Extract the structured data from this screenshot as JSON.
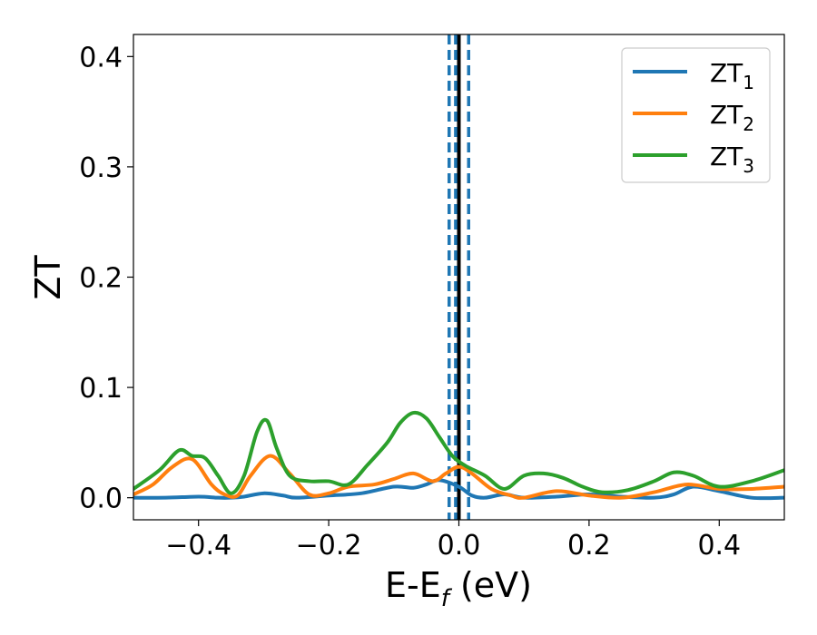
{
  "chart_data": {
    "type": "line",
    "title": "",
    "xlabel_main": "E-E",
    "xlabel_sub": "f",
    "xlabel_unit": " (eV)",
    "ylabel": "ZT",
    "xlim": [
      -0.5,
      0.5
    ],
    "ylim": [
      -0.02,
      0.42
    ],
    "x_ticks": [
      -0.4,
      -0.2,
      0.0,
      0.2,
      0.4
    ],
    "x_tick_labels": [
      "−0.4",
      "−0.2",
      "0.0",
      "0.2",
      "0.4"
    ],
    "y_ticks": [
      0.0,
      0.1,
      0.2,
      0.3,
      0.4
    ],
    "y_tick_labels": [
      "0.0",
      "0.1",
      "0.2",
      "0.3",
      "0.4"
    ],
    "grid": false,
    "legend_position": "top-right",
    "vertical_lines": [
      {
        "x": 0.0,
        "style": "solid",
        "color": "#000000"
      },
      {
        "x": -0.015,
        "style": "dashed",
        "color": "#1f77b4"
      },
      {
        "x": 0.015,
        "style": "dashed",
        "color": "#1f77b4"
      },
      {
        "x": -0.005,
        "style": "dashed",
        "color": "#1f77b4"
      }
    ],
    "series": [
      {
        "name": "ZT",
        "name_sub": "1",
        "color": "#1f77b4",
        "x": [
          -0.5,
          -0.45,
          -0.4,
          -0.37,
          -0.35,
          -0.33,
          -0.3,
          -0.27,
          -0.25,
          -0.2,
          -0.15,
          -0.1,
          -0.07,
          -0.05,
          -0.03,
          0.0,
          0.02,
          0.04,
          0.07,
          0.1,
          0.15,
          0.2,
          0.25,
          0.3,
          0.33,
          0.36,
          0.4,
          0.45,
          0.5
        ],
        "y": [
          0.0,
          0.0,
          0.001,
          0.0,
          0.0,
          0.001,
          0.004,
          0.002,
          0.0,
          0.002,
          0.004,
          0.01,
          0.009,
          0.012,
          0.016,
          0.01,
          0.002,
          0.0,
          0.003,
          0.0,
          0.001,
          0.003,
          0.001,
          0.0,
          0.003,
          0.01,
          0.006,
          0.0,
          0.0
        ]
      },
      {
        "name": "ZT",
        "name_sub": "2",
        "color": "#ff7f0e",
        "x": [
          -0.5,
          -0.47,
          -0.44,
          -0.41,
          -0.38,
          -0.36,
          -0.34,
          -0.32,
          -0.29,
          -0.26,
          -0.23,
          -0.2,
          -0.17,
          -0.13,
          -0.1,
          -0.07,
          -0.04,
          -0.02,
          0.0,
          0.02,
          0.05,
          0.08,
          0.1,
          0.15,
          0.2,
          0.25,
          0.3,
          0.35,
          0.4,
          0.45,
          0.5
        ],
        "y": [
          0.003,
          0.012,
          0.028,
          0.035,
          0.012,
          0.003,
          0.002,
          0.02,
          0.038,
          0.022,
          0.003,
          0.004,
          0.01,
          0.012,
          0.017,
          0.022,
          0.015,
          0.022,
          0.028,
          0.022,
          0.008,
          0.002,
          0.0,
          0.006,
          0.002,
          0.0,
          0.005,
          0.012,
          0.008,
          0.008,
          0.01
        ]
      },
      {
        "name": "ZT",
        "name_sub": "3",
        "color": "#2ca02c",
        "x": [
          -0.5,
          -0.46,
          -0.43,
          -0.41,
          -0.39,
          -0.37,
          -0.35,
          -0.33,
          -0.31,
          -0.295,
          -0.28,
          -0.26,
          -0.23,
          -0.2,
          -0.17,
          -0.14,
          -0.11,
          -0.09,
          -0.07,
          -0.05,
          -0.03,
          -0.01,
          0.01,
          0.04,
          0.07,
          0.1,
          0.13,
          0.16,
          0.19,
          0.22,
          0.26,
          0.3,
          0.33,
          0.36,
          0.4,
          0.45,
          0.5
        ],
        "y": [
          0.008,
          0.025,
          0.043,
          0.038,
          0.036,
          0.02,
          0.004,
          0.02,
          0.06,
          0.07,
          0.045,
          0.02,
          0.015,
          0.015,
          0.012,
          0.03,
          0.05,
          0.068,
          0.077,
          0.072,
          0.055,
          0.038,
          0.029,
          0.02,
          0.008,
          0.02,
          0.022,
          0.018,
          0.01,
          0.005,
          0.007,
          0.015,
          0.023,
          0.02,
          0.01,
          0.015,
          0.025
        ]
      }
    ]
  }
}
